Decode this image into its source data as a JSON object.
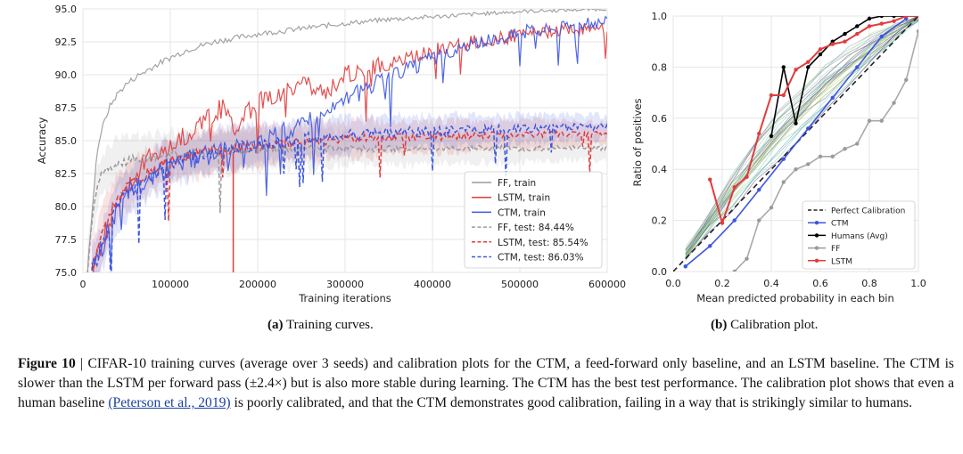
{
  "figure": {
    "panel_a_caption_label": "(a)",
    "panel_a_caption_text": "Training curves.",
    "panel_b_caption_label": "(b)",
    "panel_b_caption_text": "Calibration plot.",
    "caption_label": "Figure 10",
    "caption_sep": " | ",
    "caption_text_1": "CIFAR-10 training curves (average over 3 seeds) and calibration plots for the CTM, a feed-forward only baseline, and an LSTM baseline. The CTM is slower than the LSTM per forward pass (±2.4×) but is also more stable during learning. The CTM has the best test performance. The calibration plot shows that even a human baseline ",
    "caption_cite": "(Peterson et al., 2019)",
    "caption_text_2": " is poorly calibrated, and that the CTM demonstrates good calibration, failing in a way that is strikingly similar to humans."
  },
  "colors": {
    "ff": "#9a9a9a",
    "lstm": "#e03c3c",
    "ctm": "#3d56e0",
    "human": "#000000",
    "perfect": "#222222",
    "grid": "#e6e6e6"
  },
  "chart_data": [
    {
      "type": "line",
      "title": "",
      "xlabel": "Training iterations",
      "ylabel": "Accuracy",
      "xlim": [
        0,
        600000
      ],
      "ylim": [
        75.0,
        95.0
      ],
      "xticks": [
        0,
        100000,
        200000,
        300000,
        400000,
        500000,
        600000
      ],
      "xtick_labels": [
        "0",
        "100000",
        "200000",
        "300000",
        "400000",
        "500000",
        "600000"
      ],
      "yticks": [
        75.0,
        77.5,
        80.0,
        82.5,
        85.0,
        87.5,
        90.0,
        92.5,
        95.0
      ],
      "ytick_labels": [
        "75.0",
        "77.5",
        "80.0",
        "82.5",
        "85.0",
        "87.5",
        "90.0",
        "92.5",
        "95.0"
      ],
      "grid": true,
      "legend_position": "bottom-right",
      "series": [
        {
          "name": "FF, train",
          "key": "ff",
          "dash": false,
          "x": [
            5000,
            10000,
            15000,
            20000,
            30000,
            40000,
            50000,
            60000,
            80000,
            100000,
            120000,
            150000,
            200000,
            250000,
            300000,
            350000,
            400000,
            450000,
            500000,
            550000,
            600000
          ],
          "y": [
            75,
            79,
            83.5,
            85.5,
            87.5,
            88.6,
            89.3,
            89.8,
            90.6,
            91.3,
            91.9,
            92.5,
            93.1,
            93.5,
            93.9,
            94.2,
            94.4,
            94.6,
            94.8,
            94.9,
            95.0
          ]
        },
        {
          "name": "LSTM, train",
          "key": "lstm",
          "dash": false,
          "x": [
            10000,
            20000,
            30000,
            40000,
            60000,
            80000,
            100000,
            120000,
            140000,
            160000,
            175000,
            200000,
            225000,
            250000,
            275000,
            300000,
            325000,
            350000,
            375000,
            400000,
            425000,
            450000,
            475000,
            500000,
            525000,
            550000,
            575000,
            600000
          ],
          "y": [
            75,
            77,
            79,
            80.5,
            82.5,
            84,
            84.5,
            85.5,
            86.5,
            87.5,
            86,
            88,
            88.5,
            89.5,
            88.5,
            90,
            90.5,
            90.8,
            91.3,
            91.8,
            92.2,
            92.5,
            92.7,
            93,
            93.2,
            93.4,
            93.5,
            93.6
          ]
        },
        {
          "name": "CTM, train",
          "key": "ctm",
          "dash": false,
          "x": [
            10000,
            20000,
            30000,
            40000,
            60000,
            80000,
            100000,
            120000,
            150000,
            175000,
            200000,
            225000,
            250000,
            275000,
            300000,
            325000,
            350000,
            375000,
            400000,
            425000,
            450000,
            475000,
            500000,
            525000,
            550000,
            575000,
            600000
          ],
          "y": [
            75,
            76.5,
            78.5,
            80,
            81.5,
            82.3,
            83,
            83.5,
            84,
            84.3,
            84.8,
            85.5,
            86.2,
            87,
            88,
            89,
            89.8,
            90.5,
            91.2,
            91.8,
            92.3,
            92.8,
            93.2,
            93.5,
            93.7,
            93.9,
            94.1
          ]
        },
        {
          "name": "FF, test: 84.44%",
          "key": "ff",
          "dash": true,
          "x": [
            5000,
            10000,
            15000,
            20000,
            30000,
            40000,
            60000,
            80000,
            100000,
            150000,
            200000,
            250000,
            300000,
            350000,
            400000,
            450000,
            500000,
            550000,
            600000
          ],
          "y": [
            75,
            78.5,
            81,
            82.2,
            83,
            83.3,
            83.6,
            83.8,
            84,
            84.2,
            84.3,
            84.4,
            84.4,
            84.4,
            84.4,
            84.45,
            84.4,
            84.45,
            84.44
          ]
        },
        {
          "name": "LSTM, test: 85.54%",
          "key": "lstm",
          "dash": true,
          "x": [
            10000,
            20000,
            30000,
            40000,
            60000,
            80000,
            100000,
            150000,
            200000,
            250000,
            300000,
            350000,
            400000,
            450000,
            500000,
            550000,
            600000
          ],
          "y": [
            75,
            77.5,
            79.5,
            80.8,
            82,
            82.8,
            83.5,
            84.2,
            84.6,
            84.9,
            85.1,
            85.2,
            85.3,
            85.4,
            85.5,
            85.5,
            85.54
          ]
        },
        {
          "name": "CTM, test: 86.03%",
          "key": "ctm",
          "dash": true,
          "x": [
            10000,
            20000,
            30000,
            40000,
            60000,
            80000,
            100000,
            150000,
            200000,
            250000,
            300000,
            350000,
            400000,
            450000,
            500000,
            550000,
            600000
          ],
          "y": [
            75,
            76.5,
            78.5,
            80,
            81.5,
            82.5,
            83.3,
            84.2,
            84.7,
            85.1,
            85.4,
            85.6,
            85.7,
            85.8,
            85.9,
            86,
            86.03
          ]
        }
      ]
    },
    {
      "type": "line",
      "title": "",
      "xlabel": "Mean predicted probability in each bin",
      "ylabel": "Ratio of positives",
      "xlim": [
        0.0,
        1.0
      ],
      "ylim": [
        0.0,
        1.0
      ],
      "xticks": [
        0.0,
        0.2,
        0.4,
        0.6,
        0.8,
        1.0
      ],
      "xtick_labels": [
        "0.0",
        "0.2",
        "0.4",
        "0.6",
        "0.8",
        "1.0"
      ],
      "yticks": [
        0.0,
        0.2,
        0.4,
        0.6,
        0.8,
        1.0
      ],
      "ytick_labels": [
        "0.0",
        "0.2",
        "0.4",
        "0.6",
        "0.8",
        "1.0"
      ],
      "grid": true,
      "legend_position": "bottom-right",
      "series": [
        {
          "name": "Perfect Calibration",
          "key": "perfect",
          "dash": true,
          "marker": false,
          "x": [
            0.0,
            1.0
          ],
          "y": [
            0.0,
            1.0
          ]
        },
        {
          "name": "CTM",
          "key": "ctm",
          "dash": false,
          "marker": true,
          "x": [
            0.05,
            0.15,
            0.25,
            0.35,
            0.45,
            0.55,
            0.65,
            0.75,
            0.85,
            0.95
          ],
          "y": [
            0.02,
            0.1,
            0.2,
            0.32,
            0.44,
            0.56,
            0.68,
            0.8,
            0.92,
            0.99
          ]
        },
        {
          "name": "Humans (Avg)",
          "key": "human",
          "dash": false,
          "marker": true,
          "x": [
            0.4,
            0.45,
            0.5,
            0.55,
            0.6,
            0.65,
            0.7,
            0.75,
            0.8,
            0.85,
            0.9,
            0.95,
            1.0
          ],
          "y": [
            0.53,
            0.8,
            0.58,
            0.8,
            0.85,
            0.9,
            0.93,
            0.96,
            0.99,
            1.0,
            1.0,
            1.0,
            1.0
          ]
        },
        {
          "name": "FF",
          "key": "ff",
          "dash": false,
          "marker": true,
          "x": [
            0.25,
            0.3,
            0.35,
            0.4,
            0.45,
            0.5,
            0.55,
            0.6,
            0.65,
            0.7,
            0.75,
            0.8,
            0.85,
            0.9,
            0.95,
            1.0
          ],
          "y": [
            0.0,
            0.05,
            0.2,
            0.25,
            0.35,
            0.4,
            0.42,
            0.45,
            0.45,
            0.48,
            0.5,
            0.59,
            0.59,
            0.66,
            0.75,
            0.94
          ]
        },
        {
          "name": "LSTM",
          "key": "lstm",
          "dash": false,
          "marker": true,
          "x": [
            0.15,
            0.2,
            0.25,
            0.3,
            0.35,
            0.4,
            0.45,
            0.5,
            0.55,
            0.6,
            0.65,
            0.7,
            0.75,
            0.8,
            0.85,
            0.9,
            0.95,
            1.0
          ],
          "y": [
            0.36,
            0.19,
            0.33,
            0.37,
            0.54,
            0.69,
            0.69,
            0.79,
            0.82,
            0.87,
            0.89,
            0.9,
            0.93,
            0.96,
            0.97,
            0.98,
            1.0,
            1.0
          ]
        }
      ]
    }
  ]
}
